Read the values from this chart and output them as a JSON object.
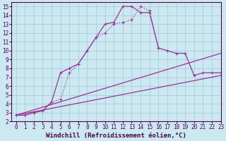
{
  "background_color": "#cce8f0",
  "grid_color": "#a0c8d8",
  "line_color": "#993399",
  "marker": "+",
  "xlim": [
    -0.5,
    23
  ],
  "ylim": [
    2,
    15.5
  ],
  "xticks": [
    0,
    1,
    2,
    3,
    4,
    5,
    6,
    7,
    8,
    9,
    10,
    11,
    12,
    13,
    14,
    15,
    16,
    17,
    18,
    19,
    20,
    21,
    22,
    23
  ],
  "yticks": [
    2,
    3,
    4,
    5,
    6,
    7,
    8,
    9,
    10,
    11,
    12,
    13,
    14,
    15
  ],
  "xlabel": "Windchill (Refroidissement éolien,°C)",
  "font_size_label": 6.5,
  "font_size_tick": 5.5,
  "line1_x": [
    0,
    1,
    2,
    3,
    4,
    5,
    6,
    7,
    8,
    9,
    10,
    11,
    12,
    13,
    14,
    15,
    16,
    17,
    18,
    19,
    20,
    21,
    22,
    23
  ],
  "line1_y": [
    2.7,
    2.7,
    3.0,
    3.2,
    4.2,
    7.5,
    8.0,
    8.5,
    10.0,
    11.5,
    13.0,
    13.2,
    15.0,
    15.0,
    14.3,
    14.3,
    10.3,
    10.0,
    9.7,
    9.7,
    7.2,
    7.5,
    7.5,
    7.5
  ],
  "line2_x": [
    0,
    1,
    2,
    3,
    4,
    5,
    6,
    7,
    8,
    9,
    10,
    11,
    12,
    13,
    14,
    15,
    16
  ],
  "line2_y": [
    2.7,
    2.7,
    3.0,
    3.2,
    4.2,
    4.5,
    7.5,
    8.5,
    10.0,
    11.5,
    12.0,
    13.0,
    13.2,
    13.5,
    15.0,
    14.5,
    10.3
  ],
  "line3_x": [
    0,
    23
  ],
  "line3_y": [
    2.7,
    9.7
  ],
  "line4_x": [
    0,
    23
  ],
  "line4_y": [
    2.7,
    7.2
  ]
}
